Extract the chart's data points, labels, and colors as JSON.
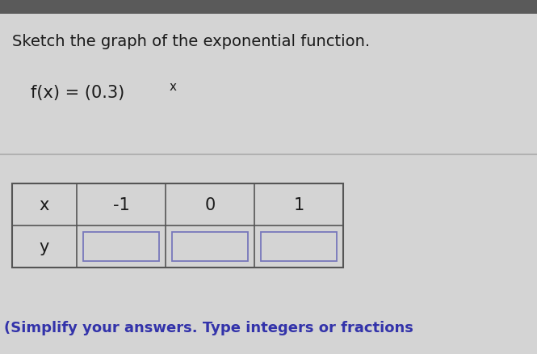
{
  "top_stripe_color": "#5a5a5a",
  "background_color": "#d4d4d4",
  "title_text": "Sketch the graph of the exponential function.",
  "func_main": "f(x) = (0.3)",
  "func_exp": "x",
  "divider_color": "#aaaaaa",
  "table_x_labels": [
    "x",
    "-1",
    "0",
    "1"
  ],
  "table_y_label": "y",
  "footer_text": "(Simplify your answers. Type integers or fractions",
  "title_fontsize": 14,
  "func_fontsize": 15,
  "func_exp_fontsize": 11,
  "table_fontsize": 15,
  "footer_fontsize": 13,
  "title_color": "#1a1a1a",
  "func_color": "#1a1a1a",
  "table_text_color": "#1a1a1a",
  "footer_color": "#3333aa",
  "table_border_color": "#555555",
  "box_color": "#7777bb"
}
